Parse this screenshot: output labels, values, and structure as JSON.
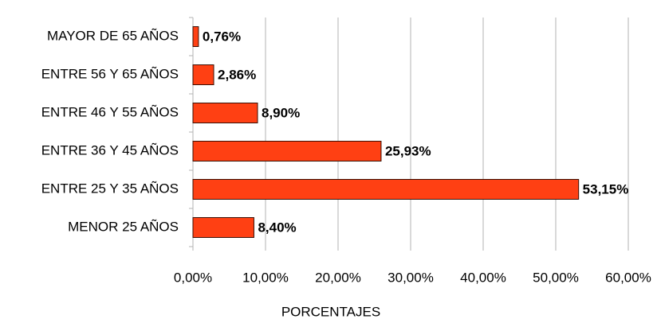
{
  "chart_data": {
    "type": "bar",
    "orientation": "horizontal",
    "x_label": "PORCENTAJES",
    "categories": [
      "MAYOR DE 65 AÑOS",
      "ENTRE 56 Y 65 AÑOS",
      "ENTRE 46 Y 55 AÑOS",
      "ENTRE 36 Y 45 AÑOS",
      "ENTRE 25 Y 35 AÑOS",
      "MENOR 25 AÑOS"
    ],
    "values": [
      0.76,
      2.86,
      8.9,
      25.93,
      53.15,
      8.4
    ],
    "value_labels": [
      "0,76%",
      "2,86%",
      "8,90%",
      "25,93%",
      "53,15%",
      "8,40%"
    ],
    "color": "#ff4013",
    "xlim": [
      0,
      60
    ],
    "xticks": [
      {
        "value": 0,
        "label": "0,00%"
      },
      {
        "value": 10,
        "label": "10,00%"
      },
      {
        "value": 20,
        "label": "20,00%"
      },
      {
        "value": 30,
        "label": "30,00%"
      },
      {
        "value": 40,
        "label": "40,00%"
      },
      {
        "value": 50,
        "label": "50,00%"
      },
      {
        "value": 60,
        "label": "60,00%"
      }
    ],
    "grid": true
  }
}
